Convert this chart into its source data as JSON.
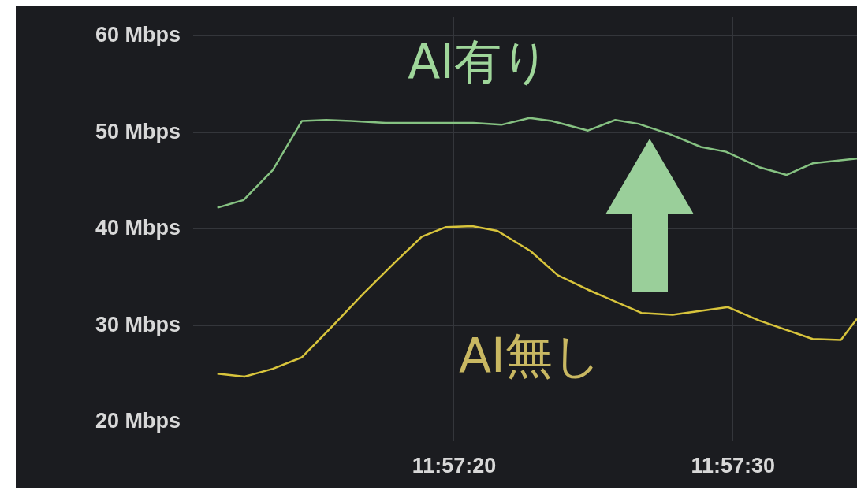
{
  "chart_data": {
    "type": "line",
    "xlim": [
      11.95297,
      11.95956
    ],
    "xticks": [
      {
        "value": 11.95556,
        "label": "11:57:20"
      },
      {
        "value": 11.95833,
        "label": "11:57:30"
      }
    ],
    "ylim": [
      18,
      62
    ],
    "yticks": [
      {
        "value": 20,
        "label": "20 Mbps"
      },
      {
        "value": 30,
        "label": "30 Mbps"
      },
      {
        "value": 40,
        "label": "40 Mbps"
      },
      {
        "value": 50,
        "label": "50 Mbps"
      },
      {
        "value": 60,
        "label": "60 Mbps"
      }
    ],
    "grid": true,
    "legend": false,
    "marker": "none",
    "line_style": "solid",
    "series": [
      {
        "name": "AI有り",
        "color": "#86c282",
        "x": [
          11.95321,
          11.95347,
          11.95376,
          11.95405,
          11.95429,
          11.95454,
          11.95488,
          11.95513,
          11.95556,
          11.95575,
          11.95603,
          11.95631,
          11.95653,
          11.95689,
          11.95716,
          11.95739,
          11.95771,
          11.95801,
          11.95826,
          11.95859,
          11.95886,
          11.95912,
          11.95956
        ],
        "values": [
          42.2,
          43.0,
          46.1,
          51.2,
          51.3,
          51.2,
          51.0,
          51.0,
          51.0,
          51.0,
          50.8,
          51.5,
          51.2,
          50.2,
          51.3,
          50.9,
          49.8,
          48.5,
          48.0,
          46.4,
          45.6,
          46.8,
          47.3
        ]
      },
      {
        "name": "AI無し",
        "color": "#d8c43c",
        "x": [
          11.95321,
          11.95348,
          11.95376,
          11.95405,
          11.95434,
          11.95466,
          11.95497,
          11.95524,
          11.95548,
          11.95574,
          11.95599,
          11.95632,
          11.95659,
          11.95689,
          11.95742,
          11.95773,
          11.95828,
          11.95859,
          11.95912,
          11.9594,
          11.95956
        ],
        "values": [
          25.0,
          24.7,
          25.5,
          26.7,
          29.8,
          33.3,
          36.5,
          39.2,
          40.2,
          40.3,
          39.8,
          37.7,
          35.2,
          33.7,
          31.3,
          31.1,
          31.9,
          30.5,
          28.6,
          28.5,
          30.7
        ]
      }
    ]
  }
}
